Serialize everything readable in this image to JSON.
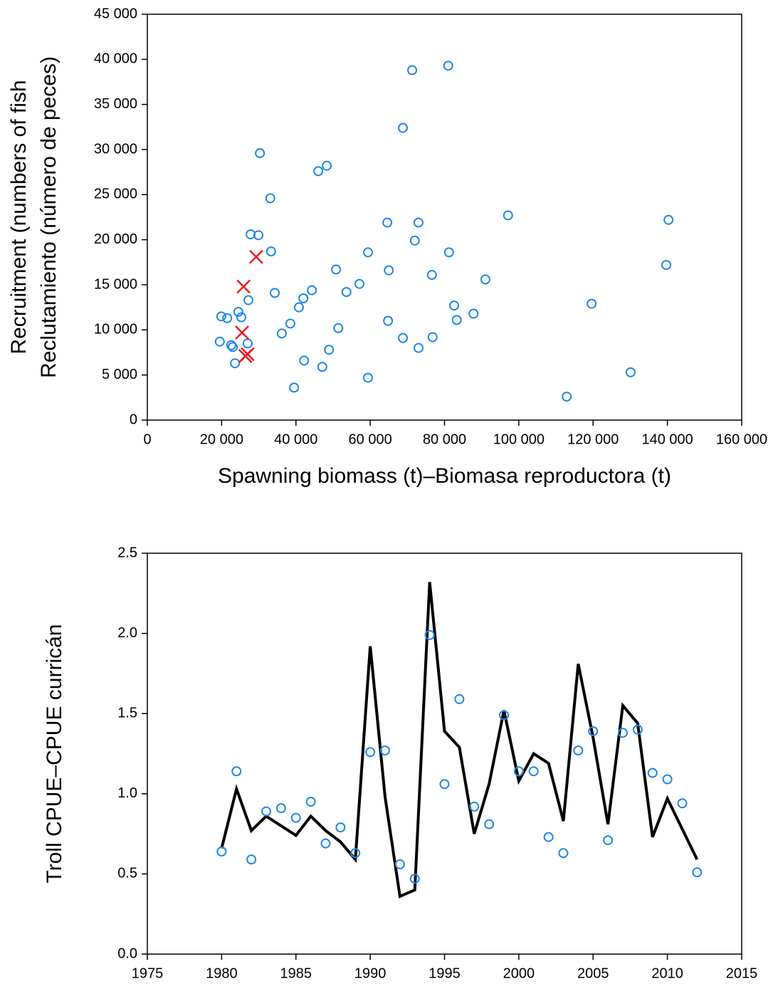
{
  "chart_data": [
    {
      "type": "scatter",
      "xlabel": "Spawning biomass (t)–Biomasa reproductora (t)",
      "ylabel": [
        "Recruitment (numbers of fish",
        "Reclutamiento (número de peces)"
      ],
      "xlim": [
        0,
        160000
      ],
      "xticks": [
        0,
        {
          "value": 20000,
          "label": "20 000"
        },
        {
          "value": 40000,
          "label": "40 000"
        },
        {
          "value": 60000,
          "label": "60 000"
        },
        {
          "value": 80000,
          "label": "80 000"
        },
        {
          "value": 100000,
          "label": "100 000"
        },
        {
          "value": 120000,
          "label": "120 000"
        },
        {
          "value": 140000,
          "label": "140 000"
        },
        {
          "value": 160000,
          "label": "160 000"
        }
      ],
      "ylim": [
        0,
        45000
      ],
      "yticks": [
        0,
        {
          "value": 5000,
          "label": "5 000"
        },
        {
          "value": 10000,
          "label": "10 000"
        },
        {
          "value": 15000,
          "label": "15 000"
        },
        {
          "value": 20000,
          "label": "20 000"
        },
        {
          "value": 25000,
          "label": "25 000"
        },
        {
          "value": 30000,
          "label": "30 000"
        },
        {
          "value": 35000,
          "label": "35 000"
        },
        {
          "value": 40000,
          "label": "40 000"
        },
        {
          "value": 45000,
          "label": "45 000"
        }
      ],
      "series": [
        {
          "color": "#1e88e5",
          "marker": "circle",
          "x": [
            19500,
            19900,
            21500,
            22600,
            23000,
            23600,
            24500,
            25300,
            27000,
            27200,
            27800,
            29900,
            30300,
            33100,
            33300,
            34300,
            36200,
            38500,
            39500,
            40800,
            42000,
            42200,
            44300,
            46000,
            47100,
            48300,
            48900,
            50800,
            51400,
            53600,
            57100,
            59400,
            59400,
            64600,
            64800,
            65000,
            68800,
            68800,
            71300,
            72000,
            73000,
            73000,
            76600,
            76800,
            81000,
            81200,
            82600,
            83300,
            87800,
            91000,
            97100,
            112900,
            119600,
            130100,
            139700,
            140300
          ],
          "values": [
            8700,
            11500,
            11300,
            8300,
            8100,
            6300,
            12000,
            11400,
            8500,
            13300,
            20600,
            20500,
            29600,
            24600,
            18700,
            14100,
            9600,
            10700,
            3600,
            12500,
            13500,
            6600,
            14400,
            27600,
            5900,
            28200,
            7800,
            16700,
            10200,
            14200,
            15100,
            4700,
            18600,
            21900,
            11000,
            16600,
            9100,
            32400,
            38800,
            19900,
            21900,
            8000,
            16100,
            9200,
            39300,
            18600,
            12700,
            11100,
            11800,
            15600,
            22700,
            2600,
            12900,
            5300,
            17200,
            22200
          ]
        },
        {
          "color": "#ee1c1c",
          "marker": "x",
          "x": [
            29300,
            25900,
            25500,
            26400,
            27000
          ],
          "values": [
            18100,
            14800,
            9700,
            7100,
            7300
          ]
        }
      ]
    },
    {
      "type": "line",
      "ylabel": "Troll CPUE–CPUE curricán",
      "xlim": [
        1975,
        2015
      ],
      "xticks": [
        1975,
        1980,
        1985,
        1990,
        1995,
        2000,
        2005,
        2010,
        2015
      ],
      "ylim": [
        0,
        2.5
      ],
      "yticks": [
        {
          "value": 0,
          "label": "0.0"
        },
        0.5,
        {
          "value": 1,
          "label": "1.0"
        },
        1.5,
        {
          "value": 2,
          "label": "2.0"
        },
        2.5
      ],
      "x": [
        1980,
        1981,
        1982,
        1983,
        1984,
        1985,
        1986,
        1987,
        1988,
        1989,
        1990,
        1991,
        1992,
        1993,
        1994,
        1995,
        1996,
        1997,
        1998,
        1999,
        2000,
        2001,
        2002,
        2003,
        2004,
        2005,
        2006,
        2007,
        2008,
        2009,
        2010,
        2011,
        2012
      ],
      "series": [
        {
          "color": "#000000",
          "mode": "line",
          "values": [
            0.66,
            1.03,
            0.77,
            0.86,
            0.8,
            0.74,
            0.86,
            0.77,
            0.7,
            0.59,
            1.92,
            0.98,
            0.36,
            0.4,
            2.32,
            1.39,
            1.29,
            0.75,
            1.06,
            1.52,
            1.08,
            1.25,
            1.19,
            0.83,
            1.81,
            1.35,
            0.81,
            1.55,
            1.44,
            0.73,
            0.97,
            0.78,
            0.59
          ]
        },
        {
          "color": "#1e88e5",
          "mode": "markers",
          "values": [
            0.64,
            1.14,
            0.59,
            0.89,
            0.91,
            0.85,
            0.95,
            0.69,
            0.79,
            0.63,
            1.26,
            1.27,
            0.56,
            0.47,
            1.99,
            1.06,
            1.59,
            0.92,
            0.81,
            1.49,
            1.14,
            1.14,
            0.73,
            0.63,
            1.27,
            1.39,
            0.71,
            1.38,
            1.4,
            1.13,
            1.09,
            0.94,
            0.51
          ]
        }
      ]
    }
  ]
}
